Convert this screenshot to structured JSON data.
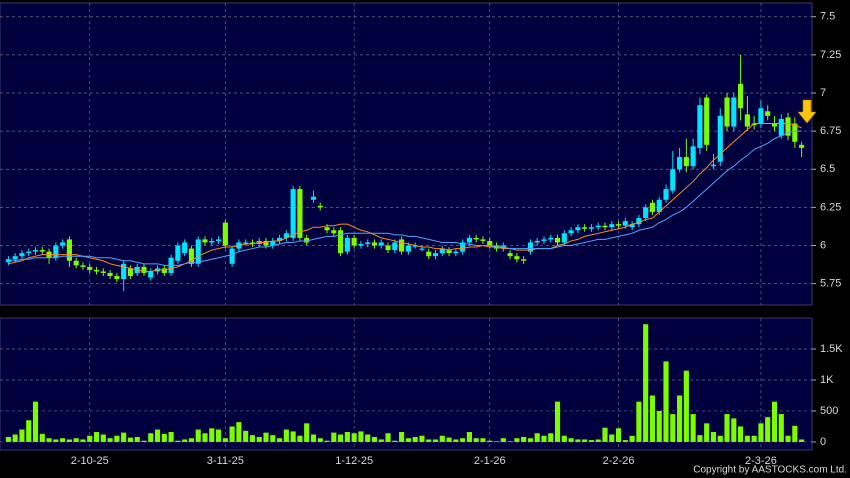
{
  "chart_data": [
    {
      "type": "candlestick",
      "categories": [
        null,
        null,
        null,
        null,
        null,
        null,
        null,
        null,
        null,
        null,
        null,
        null,
        "2-10-25",
        null,
        null,
        null,
        null,
        null,
        null,
        null,
        null,
        null,
        null,
        null,
        null,
        null,
        null,
        null,
        null,
        null,
        null,
        null,
        "3-11-25",
        null,
        null,
        null,
        null,
        null,
        null,
        null,
        null,
        null,
        null,
        null,
        null,
        null,
        null,
        null,
        null,
        null,
        null,
        "1-12-25",
        null,
        null,
        null,
        null,
        null,
        null,
        null,
        null,
        null,
        null,
        null,
        null,
        null,
        null,
        null,
        null,
        null,
        null,
        null,
        "2-1-26",
        null,
        null,
        null,
        null,
        null,
        null,
        null,
        null,
        null,
        null,
        null,
        null,
        null,
        null,
        null,
        null,
        null,
        null,
        "2-2-26",
        null,
        null,
        null,
        null,
        null,
        null,
        null,
        null,
        null,
        null,
        null,
        null,
        null,
        null,
        null,
        null,
        null,
        null,
        null,
        null,
        "2-3-26",
        null,
        null,
        null,
        null,
        null,
        null
      ],
      "open": [
        5.89,
        5.91,
        5.93,
        5.95,
        5.96,
        5.97,
        5.96,
        5.92,
        6.0,
        6.04,
        5.9,
        5.87,
        5.86,
        5.84,
        5.83,
        5.82,
        5.8,
        5.78,
        5.85,
        5.82,
        5.86,
        5.79,
        5.83,
        5.85,
        5.82,
        5.9,
        5.95,
        5.98,
        5.88,
        6.04,
        6.02,
        6.03,
        6.15,
        5.88,
        5.98,
        6.02,
        6.02,
        6.01,
        6.03,
        6.0,
        6.03,
        6.05,
        6.05,
        6.37,
        6.05,
        6.3,
        6.26,
        6.12,
        6.1,
        6.1,
        5.96,
        6.05,
        6.0,
        6.01,
        6.02,
        6.0,
        6.0,
        5.97,
        6.04,
        5.96,
        6.0,
        5.98,
        5.96,
        5.93,
        5.95,
        5.97,
        5.95,
        5.96,
        6.02,
        6.05,
        6.04,
        6.03,
        6.0,
        5.98,
        5.95,
        5.93,
        5.91,
        5.96,
        6.02,
        6.03,
        6.04,
        6.05,
        6.02,
        6.08,
        6.1,
        6.12,
        6.11,
        6.12,
        6.13,
        6.12,
        6.14,
        6.13,
        6.12,
        6.14,
        6.18,
        6.28,
        6.22,
        6.3,
        6.36,
        6.5,
        6.58,
        6.52,
        6.64,
        6.97,
        6.52,
        6.55,
        6.97,
        6.78,
        7.06,
        6.86,
        6.8,
        6.8,
        6.88,
        6.8,
        6.72,
        6.84,
        6.8,
        6.66
      ],
      "high": [
        5.93,
        5.95,
        5.97,
        5.98,
        5.99,
        5.99,
        5.98,
        6.02,
        6.04,
        6.06,
        5.92,
        5.89,
        5.88,
        5.86,
        5.85,
        5.84,
        5.82,
        5.9,
        5.87,
        5.88,
        5.88,
        5.85,
        5.87,
        5.87,
        5.94,
        6.02,
        6.04,
        6.0,
        6.06,
        6.06,
        6.05,
        6.06,
        6.17,
        6.0,
        6.04,
        6.04,
        6.04,
        6.05,
        6.05,
        6.05,
        6.07,
        6.1,
        6.39,
        6.39,
        6.07,
        6.36,
        6.28,
        6.14,
        6.12,
        6.12,
        6.07,
        6.07,
        6.03,
        6.04,
        6.04,
        6.04,
        6.02,
        6.04,
        6.06,
        6.02,
        6.02,
        6.0,
        5.98,
        5.97,
        6.0,
        5.99,
        5.98,
        6.04,
        6.07,
        6.07,
        6.06,
        6.05,
        6.02,
        6.02,
        5.97,
        5.95,
        5.93,
        6.04,
        6.05,
        6.06,
        6.07,
        6.07,
        6.1,
        6.12,
        6.14,
        6.14,
        6.14,
        6.15,
        6.15,
        6.16,
        6.16,
        6.18,
        6.16,
        6.2,
        6.27,
        6.3,
        6.32,
        6.4,
        6.62,
        6.64,
        6.7,
        6.7,
        6.97,
        6.99,
        6.6,
        6.9,
        7.0,
        7.0,
        7.25,
        6.98,
        6.85,
        6.95,
        6.92,
        6.85,
        6.86,
        6.87,
        6.84,
        6.68
      ],
      "low": [
        5.87,
        5.89,
        5.91,
        5.93,
        5.94,
        5.94,
        5.88,
        5.9,
        5.98,
        5.86,
        5.85,
        5.84,
        5.82,
        5.81,
        5.8,
        5.78,
        5.76,
        5.7,
        5.78,
        5.8,
        5.8,
        5.77,
        5.81,
        5.8,
        5.8,
        5.88,
        5.93,
        5.86,
        5.86,
        6.0,
        6.0,
        6.01,
        5.98,
        5.86,
        5.96,
        6.0,
        5.99,
        5.99,
        5.98,
        5.98,
        6.01,
        6.03,
        6.03,
        6.03,
        6.0,
        6.28,
        6.23,
        6.08,
        6.06,
        5.93,
        5.94,
        5.98,
        5.98,
        5.99,
        5.98,
        5.98,
        5.95,
        5.95,
        5.94,
        5.94,
        5.98,
        5.96,
        5.91,
        5.91,
        5.93,
        5.93,
        5.93,
        5.94,
        6.0,
        6.02,
        6.01,
        5.98,
        5.96,
        5.96,
        5.91,
        5.89,
        5.88,
        5.94,
        6.0,
        6.01,
        6.02,
        6.0,
        6.0,
        6.06,
        6.08,
        6.09,
        6.09,
        6.1,
        6.1,
        6.1,
        6.11,
        6.11,
        6.1,
        6.12,
        6.16,
        6.2,
        6.2,
        6.28,
        6.34,
        6.48,
        6.48,
        6.5,
        6.6,
        6.62,
        6.5,
        6.52,
        6.75,
        6.75,
        6.82,
        6.75,
        6.76,
        6.77,
        6.82,
        6.75,
        6.7,
        6.69,
        6.64,
        6.58
      ],
      "close": [
        5.91,
        5.93,
        5.95,
        5.96,
        5.97,
        5.96,
        5.92,
        6.0,
        6.02,
        5.9,
        5.87,
        5.86,
        5.84,
        5.83,
        5.82,
        5.8,
        5.78,
        5.88,
        5.8,
        5.86,
        5.82,
        5.83,
        5.85,
        5.82,
        5.92,
        6.0,
        6.02,
        5.88,
        6.04,
        6.02,
        6.03,
        6.04,
        6.0,
        5.98,
        6.02,
        6.02,
        6.01,
        6.03,
        6.0,
        6.03,
        6.05,
        6.08,
        6.37,
        6.05,
        6.02,
        6.32,
        6.25,
        6.1,
        6.08,
        5.95,
        6.05,
        6.0,
        6.01,
        6.02,
        6.0,
        6.02,
        5.97,
        6.02,
        5.96,
        6.0,
        6.0,
        5.98,
        5.93,
        5.95,
        5.98,
        5.95,
        5.96,
        6.02,
        6.05,
        6.04,
        6.03,
        6.0,
        5.98,
        6.0,
        5.93,
        5.91,
        5.9,
        6.02,
        6.03,
        6.04,
        6.05,
        6.02,
        6.08,
        6.1,
        6.12,
        6.11,
        6.12,
        6.13,
        6.12,
        6.14,
        6.13,
        6.16,
        6.14,
        6.18,
        6.25,
        6.22,
        6.3,
        6.37,
        6.5,
        6.58,
        6.52,
        6.65,
        6.92,
        6.66,
        6.53,
        6.85,
        6.78,
        6.97,
        6.9,
        6.78,
        6.79,
        6.9,
        6.85,
        6.78,
        6.83,
        6.72,
        6.68,
        6.64
      ],
      "up_color": "#00e5ff",
      "down_color": "#7cfc00",
      "lines": [
        {
          "color": "#ff8c1a",
          "values": [
            5.88,
            5.89,
            5.9,
            5.92,
            5.93,
            5.94,
            5.94,
            5.94,
            5.94,
            5.94,
            5.94,
            5.93,
            5.92,
            5.91,
            5.9,
            5.88,
            5.87,
            5.86,
            5.85,
            5.84,
            5.83,
            5.83,
            5.84,
            5.84,
            5.85,
            5.86,
            5.88,
            5.9,
            5.93,
            5.95,
            5.97,
            5.98,
            5.99,
            5.99,
            6.0,
            6.01,
            6.01,
            6.02,
            6.02,
            6.03,
            6.03,
            6.05,
            6.07,
            6.09,
            6.1,
            6.12,
            6.12,
            6.13,
            6.13,
            6.14,
            6.14,
            6.12,
            6.1,
            6.09,
            6.07,
            6.05,
            6.04,
            6.03,
            6.02,
            6.01,
            6.0,
            5.99,
            5.99,
            5.98,
            5.98,
            5.97,
            5.98,
            5.98,
            5.99,
            5.99,
            6.0,
            5.99,
            5.99,
            5.98,
            5.98,
            5.97,
            5.97,
            5.97,
            5.98,
            5.98,
            5.98,
            6.0,
            6.01,
            6.03,
            6.04,
            6.06,
            6.07,
            6.08,
            6.09,
            6.1,
            6.11,
            6.12,
            6.14,
            6.15,
            6.17,
            6.18,
            6.22,
            6.26,
            6.3,
            6.34,
            6.38,
            6.42,
            6.47,
            6.51,
            6.56,
            6.6,
            6.64,
            6.68,
            6.72,
            6.76,
            6.8,
            6.8,
            6.8,
            6.8,
            6.8,
            6.8,
            6.79,
            6.77
          ]
        },
        {
          "color": "#4da6ff",
          "values": [
            5.9,
            5.9,
            5.91,
            5.91,
            5.92,
            5.92,
            5.92,
            5.92,
            5.93,
            5.93,
            5.93,
            5.93,
            5.93,
            5.92,
            5.92,
            5.92,
            5.91,
            5.9,
            5.9,
            5.89,
            5.88,
            5.88,
            5.88,
            5.87,
            5.87,
            5.87,
            5.88,
            5.89,
            5.89,
            5.9,
            5.91,
            5.92,
            5.93,
            5.94,
            5.96,
            5.97,
            5.98,
            5.99,
            5.99,
            6.0,
            6.01,
            6.02,
            6.02,
            6.03,
            6.03,
            6.04,
            6.05,
            6.06,
            6.06,
            6.07,
            6.08,
            6.08,
            6.08,
            6.08,
            6.08,
            6.08,
            6.08,
            6.07,
            6.07,
            6.06,
            6.06,
            6.05,
            6.04,
            6.03,
            6.02,
            6.02,
            6.02,
            6.01,
            6.01,
            6.0,
            6.0,
            6.0,
            5.99,
            5.99,
            5.98,
            5.98,
            5.98,
            5.98,
            5.98,
            5.98,
            5.98,
            5.99,
            6.0,
            6.0,
            6.01,
            6.02,
            6.03,
            6.04,
            6.04,
            6.05,
            6.06,
            6.07,
            6.08,
            6.1,
            6.11,
            6.12,
            6.15,
            6.17,
            6.2,
            6.22,
            6.25,
            6.29,
            6.33,
            6.37,
            6.41,
            6.45,
            6.49,
            6.52,
            6.56,
            6.59,
            6.63,
            6.65,
            6.67,
            6.7,
            6.72,
            6.74,
            6.75,
            6.75
          ]
        }
      ],
      "ylim": [
        5.61,
        7.59
      ],
      "yticks": [
        5.75,
        6,
        6.25,
        6.5,
        6.75,
        7,
        7.25,
        7.5
      ],
      "grid": true
    },
    {
      "type": "bar",
      "color": "#7cfc00",
      "values": [
        80,
        120,
        200,
        350,
        650,
        130,
        60,
        40,
        60,
        40,
        60,
        40,
        100,
        160,
        120,
        60,
        100,
        150,
        70,
        80,
        20,
        140,
        200,
        130,
        160,
        20,
        40,
        60,
        200,
        140,
        220,
        200,
        60,
        250,
        320,
        180,
        110,
        80,
        150,
        110,
        60,
        200,
        170,
        100,
        300,
        120,
        60,
        20,
        150,
        120,
        160,
        140,
        170,
        120,
        80,
        40,
        140,
        20,
        160,
        60,
        80,
        100,
        40,
        40,
        100,
        70,
        40,
        60,
        160,
        60,
        60,
        20,
        10,
        60,
        10,
        60,
        80,
        60,
        140,
        100,
        140,
        650,
        100,
        60,
        40,
        40,
        30,
        40,
        230,
        120,
        220,
        30,
        100,
        650,
        1900,
        750,
        500,
        1300,
        450,
        750,
        1150,
        450,
        110,
        300,
        160,
        100,
        450,
        380,
        250,
        100,
        100,
        300,
        400,
        650,
        450,
        100,
        260,
        40
      ],
      "ylim": [
        -130,
        2000
      ],
      "yticks": [
        0,
        500,
        {
          "value": 1000,
          "label": "1K"
        },
        {
          "value": 1500,
          "label": "1.5K"
        }
      ],
      "grid": true
    }
  ],
  "copyright": "Copyright by AASTOCKS.com Ltd."
}
